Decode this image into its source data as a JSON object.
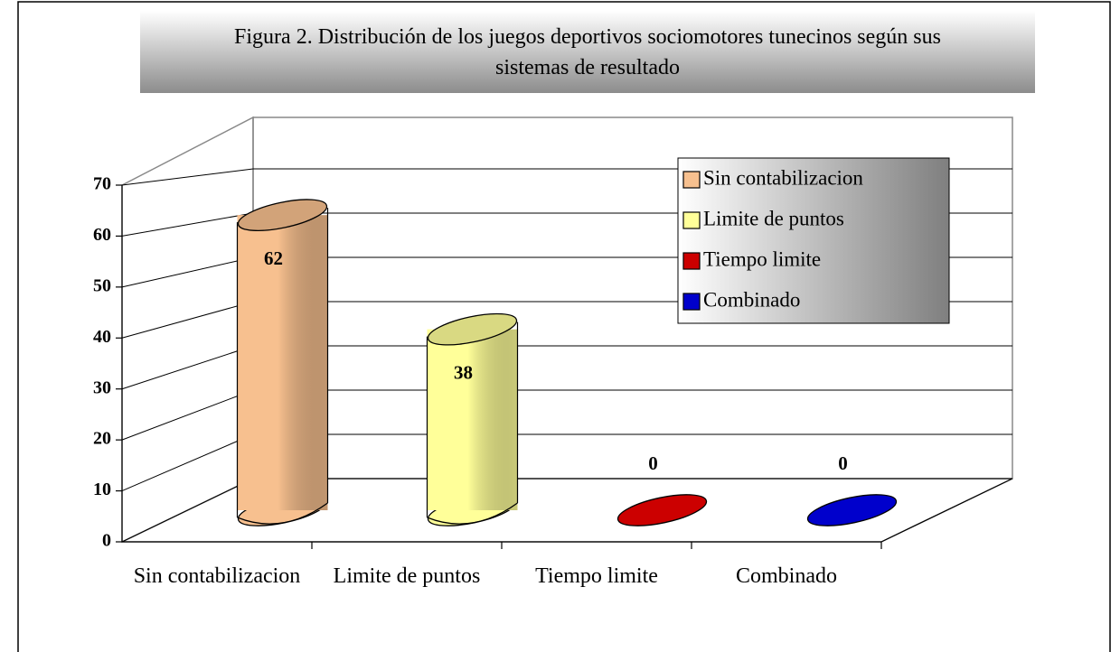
{
  "chart_data": {
    "type": "cylinder",
    "title": "Figura 2. Distribución de los juegos deportivos sociomotores tunecinos según sus sistemas de resultado",
    "categories": [
      "Sin contabilizacion",
      "Limite de puntos",
      "Tiempo limite",
      "Combinado"
    ],
    "values": [
      62,
      38,
      0,
      0
    ],
    "colors": [
      "#f7c08f",
      "#ffff99",
      "#cc0000",
      "#0000cc"
    ],
    "ylim": [
      0,
      70
    ],
    "yticks": [
      0,
      10,
      20,
      30,
      40,
      50,
      60,
      70
    ],
    "grid": true,
    "legend": "upper right"
  }
}
